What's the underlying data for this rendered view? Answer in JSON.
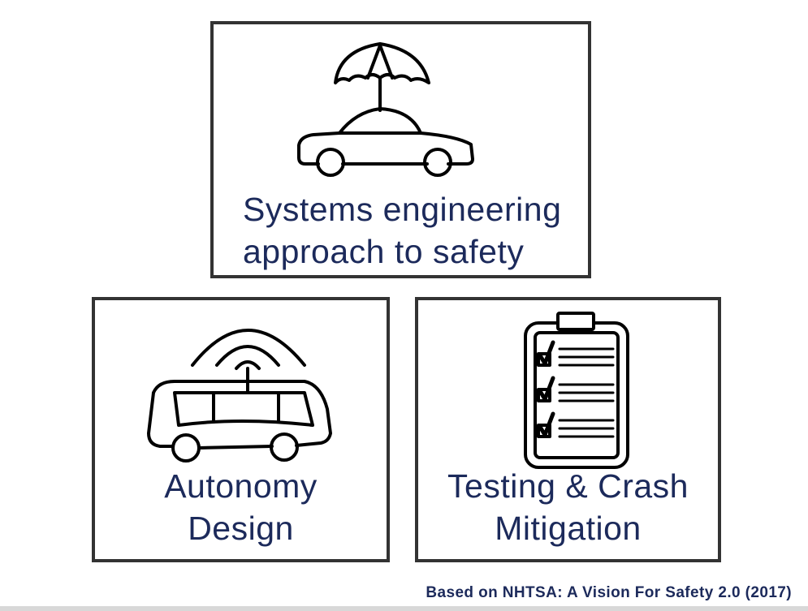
{
  "boxes": {
    "top": {
      "icon": "car-umbrella-icon",
      "line1": "Systems engineering",
      "line2": "approach to safety"
    },
    "left": {
      "icon": "autonomous-vehicle-icon",
      "line1": "Autonomy",
      "line2": "Design"
    },
    "right": {
      "icon": "checklist-clipboard-icon",
      "line1": "Testing & Crash",
      "line2": "Mitigation"
    }
  },
  "footnote": "Based on NHTSA: A Vision For Safety 2.0 (2017)",
  "colors": {
    "text": "#1c2a5b",
    "border": "#333333",
    "icon": "#000000"
  }
}
